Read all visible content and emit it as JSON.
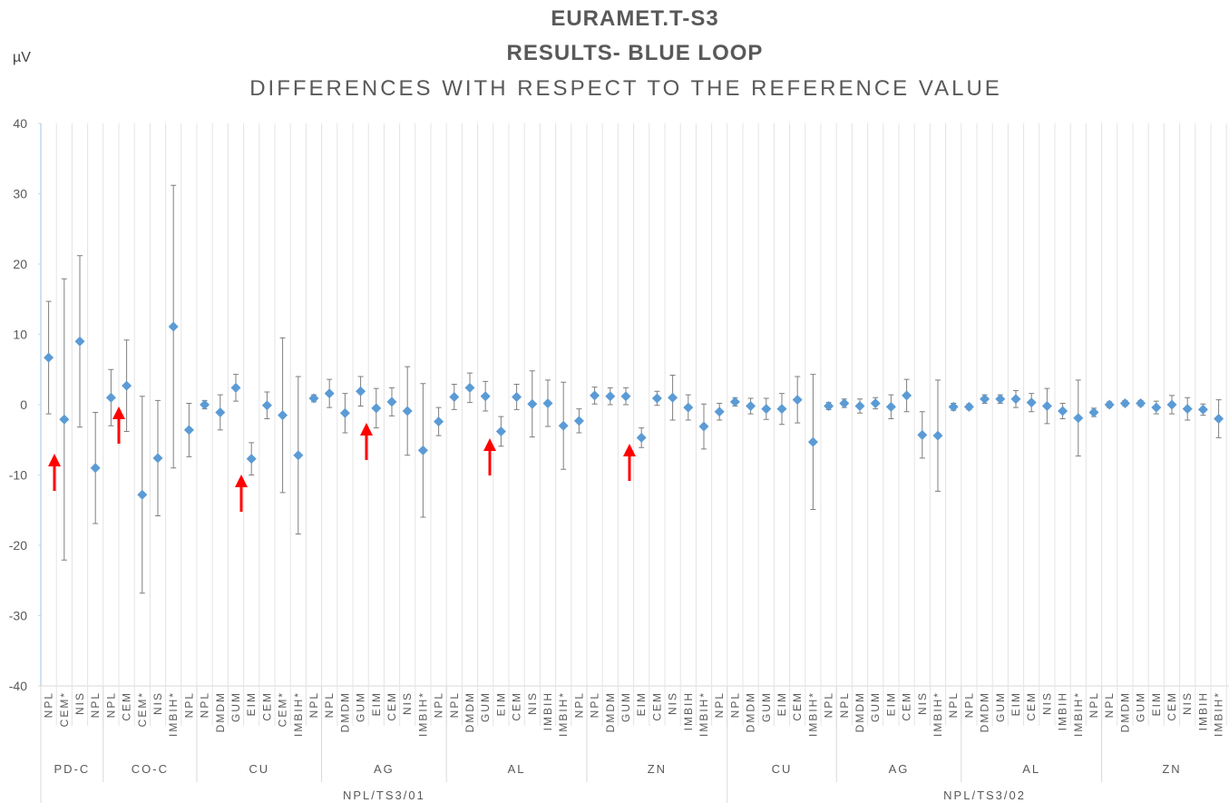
{
  "chart_data": {
    "type": "errorbar",
    "title": "EURAMET.T-S3",
    "subtitle": "RESULTS- BLUE LOOP",
    "subtitle2": "DIFFERENCES WITH RESPECT TO THE REFERENCE VALUE",
    "y_label": "µV",
    "ylim": [
      -40,
      40
    ],
    "yticks": [
      -40,
      -30,
      -20,
      -10,
      0,
      10,
      20,
      30,
      40
    ],
    "color": "#5b9bd5",
    "error_color": "#7f7f7f",
    "groups": [
      {
        "label": "NPL/TS3/01",
        "groups": [
          {
            "label": "PD-C",
            "categories": [
              "NPL",
              "CEM*",
              "NIS",
              "NPL"
            ]
          },
          {
            "label": "CO-C",
            "categories": [
              "NPL",
              "CEM",
              "CEM*",
              "NIS",
              "IMBIH*",
              "NPL"
            ]
          },
          {
            "label": "CU",
            "categories": [
              "NPL",
              "DMDM",
              "GUM",
              "EIM",
              "CEM",
              "CEM*",
              "IMBIH*",
              "NPL"
            ]
          },
          {
            "label": "AG",
            "categories": [
              "NPL",
              "DMDM",
              "GUM",
              "EIM",
              "CEM",
              "NIS",
              "IMBIH*",
              "NPL"
            ]
          },
          {
            "label": "AL",
            "categories": [
              "NPL",
              "DMDM",
              "GUM",
              "EIM",
              "CEM",
              "NIS",
              "IMBIH",
              "IMBIH*",
              "NPL"
            ]
          },
          {
            "label": "ZN",
            "categories": [
              "NPL",
              "DMDM",
              "GUM",
              "EIM",
              "CEM",
              "NIS",
              "IMBIH",
              "IMBIH*",
              "NPL"
            ]
          }
        ]
      },
      {
        "label": "NPL/TS3/02",
        "groups": [
          {
            "label": "CU",
            "categories": [
              "NPL",
              "DMDM",
              "GUM",
              "EIM",
              "CEM",
              "IMBIH*",
              "NPL"
            ]
          },
          {
            "label": "AG",
            "categories": [
              "NPL",
              "DMDM",
              "GUM",
              "EIM",
              "CEM",
              "NIS",
              "IMBIH*",
              "NPL"
            ]
          },
          {
            "label": "AL",
            "categories": [
              "NPL",
              "DMDM",
              "GUM",
              "EIM",
              "CEM",
              "NIS",
              "IMBIH",
              "IMBIH*",
              "NPL"
            ]
          },
          {
            "label": "ZN",
            "categories": [
              "NPL",
              "DMDM",
              "GUM",
              "EIM",
              "CEM",
              "NIS",
              "IMBIH",
              "IMBIH*",
              "NPL"
            ]
          }
        ]
      }
    ],
    "values": [
      6.7,
      -2.1,
      9.0,
      -9.0,
      1.0,
      2.7,
      -12.8,
      -7.6,
      11.1,
      -3.6,
      0,
      -1.1,
      2.4,
      -7.7,
      -0.1,
      -1.5,
      -7.2,
      0.9,
      1.6,
      -1.2,
      1.9,
      -0.5,
      0.4,
      -0.9,
      -6.5,
      -2.4,
      1.1,
      2.4,
      1.2,
      -3.8,
      1.1,
      0.1,
      0.2,
      -3.0,
      -2.3,
      1.3,
      1.2,
      1.2,
      -4.7,
      0.9,
      1.0,
      -0.4,
      -3.1,
      -1.0,
      0.4,
      -0.2,
      -0.6,
      -0.6,
      0.7,
      -5.3,
      -0.2,
      0.2,
      -0.2,
      0.2,
      -0.3,
      1.3,
      -4.3,
      -4.4,
      -0.3,
      -0.3,
      0.8,
      0.8,
      0.8,
      0.3,
      -0.2,
      -0.9,
      -1.9,
      -1.1,
      0,
      0.2,
      0.2,
      -0.4,
      0,
      -0.6,
      -0.7,
      -2.0,
      -0.3
    ],
    "errors": [
      8,
      20,
      12.2,
      7.9,
      4,
      6.5,
      14,
      8.2,
      20.1,
      3.8,
      0.6,
      2.5,
      1.9,
      2.3,
      1.9,
      11,
      11.2,
      0.5,
      2,
      2.8,
      2.1,
      2.8,
      2.0,
      6.3,
      9.5,
      2,
      1.8,
      2.1,
      2.1,
      2.1,
      1.8,
      4.7,
      3.3,
      6.2,
      1.7,
      1.2,
      1.2,
      1.2,
      1.4,
      1.0,
      3.2,
      1.8,
      3.2,
      1.2,
      0.6,
      1.1,
      1.5,
      2.2,
      3.3,
      9.6,
      0.5,
      0.6,
      1.0,
      0.8,
      1.7,
      2.3,
      3.3,
      7.9,
      0.5,
      0.4,
      0.6,
      0.6,
      1.2,
      1.3,
      2.5,
      1.1,
      5.4,
      0.6,
      0.4,
      0.4,
      0.4,
      0.9,
      1.3,
      1.6,
      0.8,
      2.7,
      0.4
    ]
  }
}
